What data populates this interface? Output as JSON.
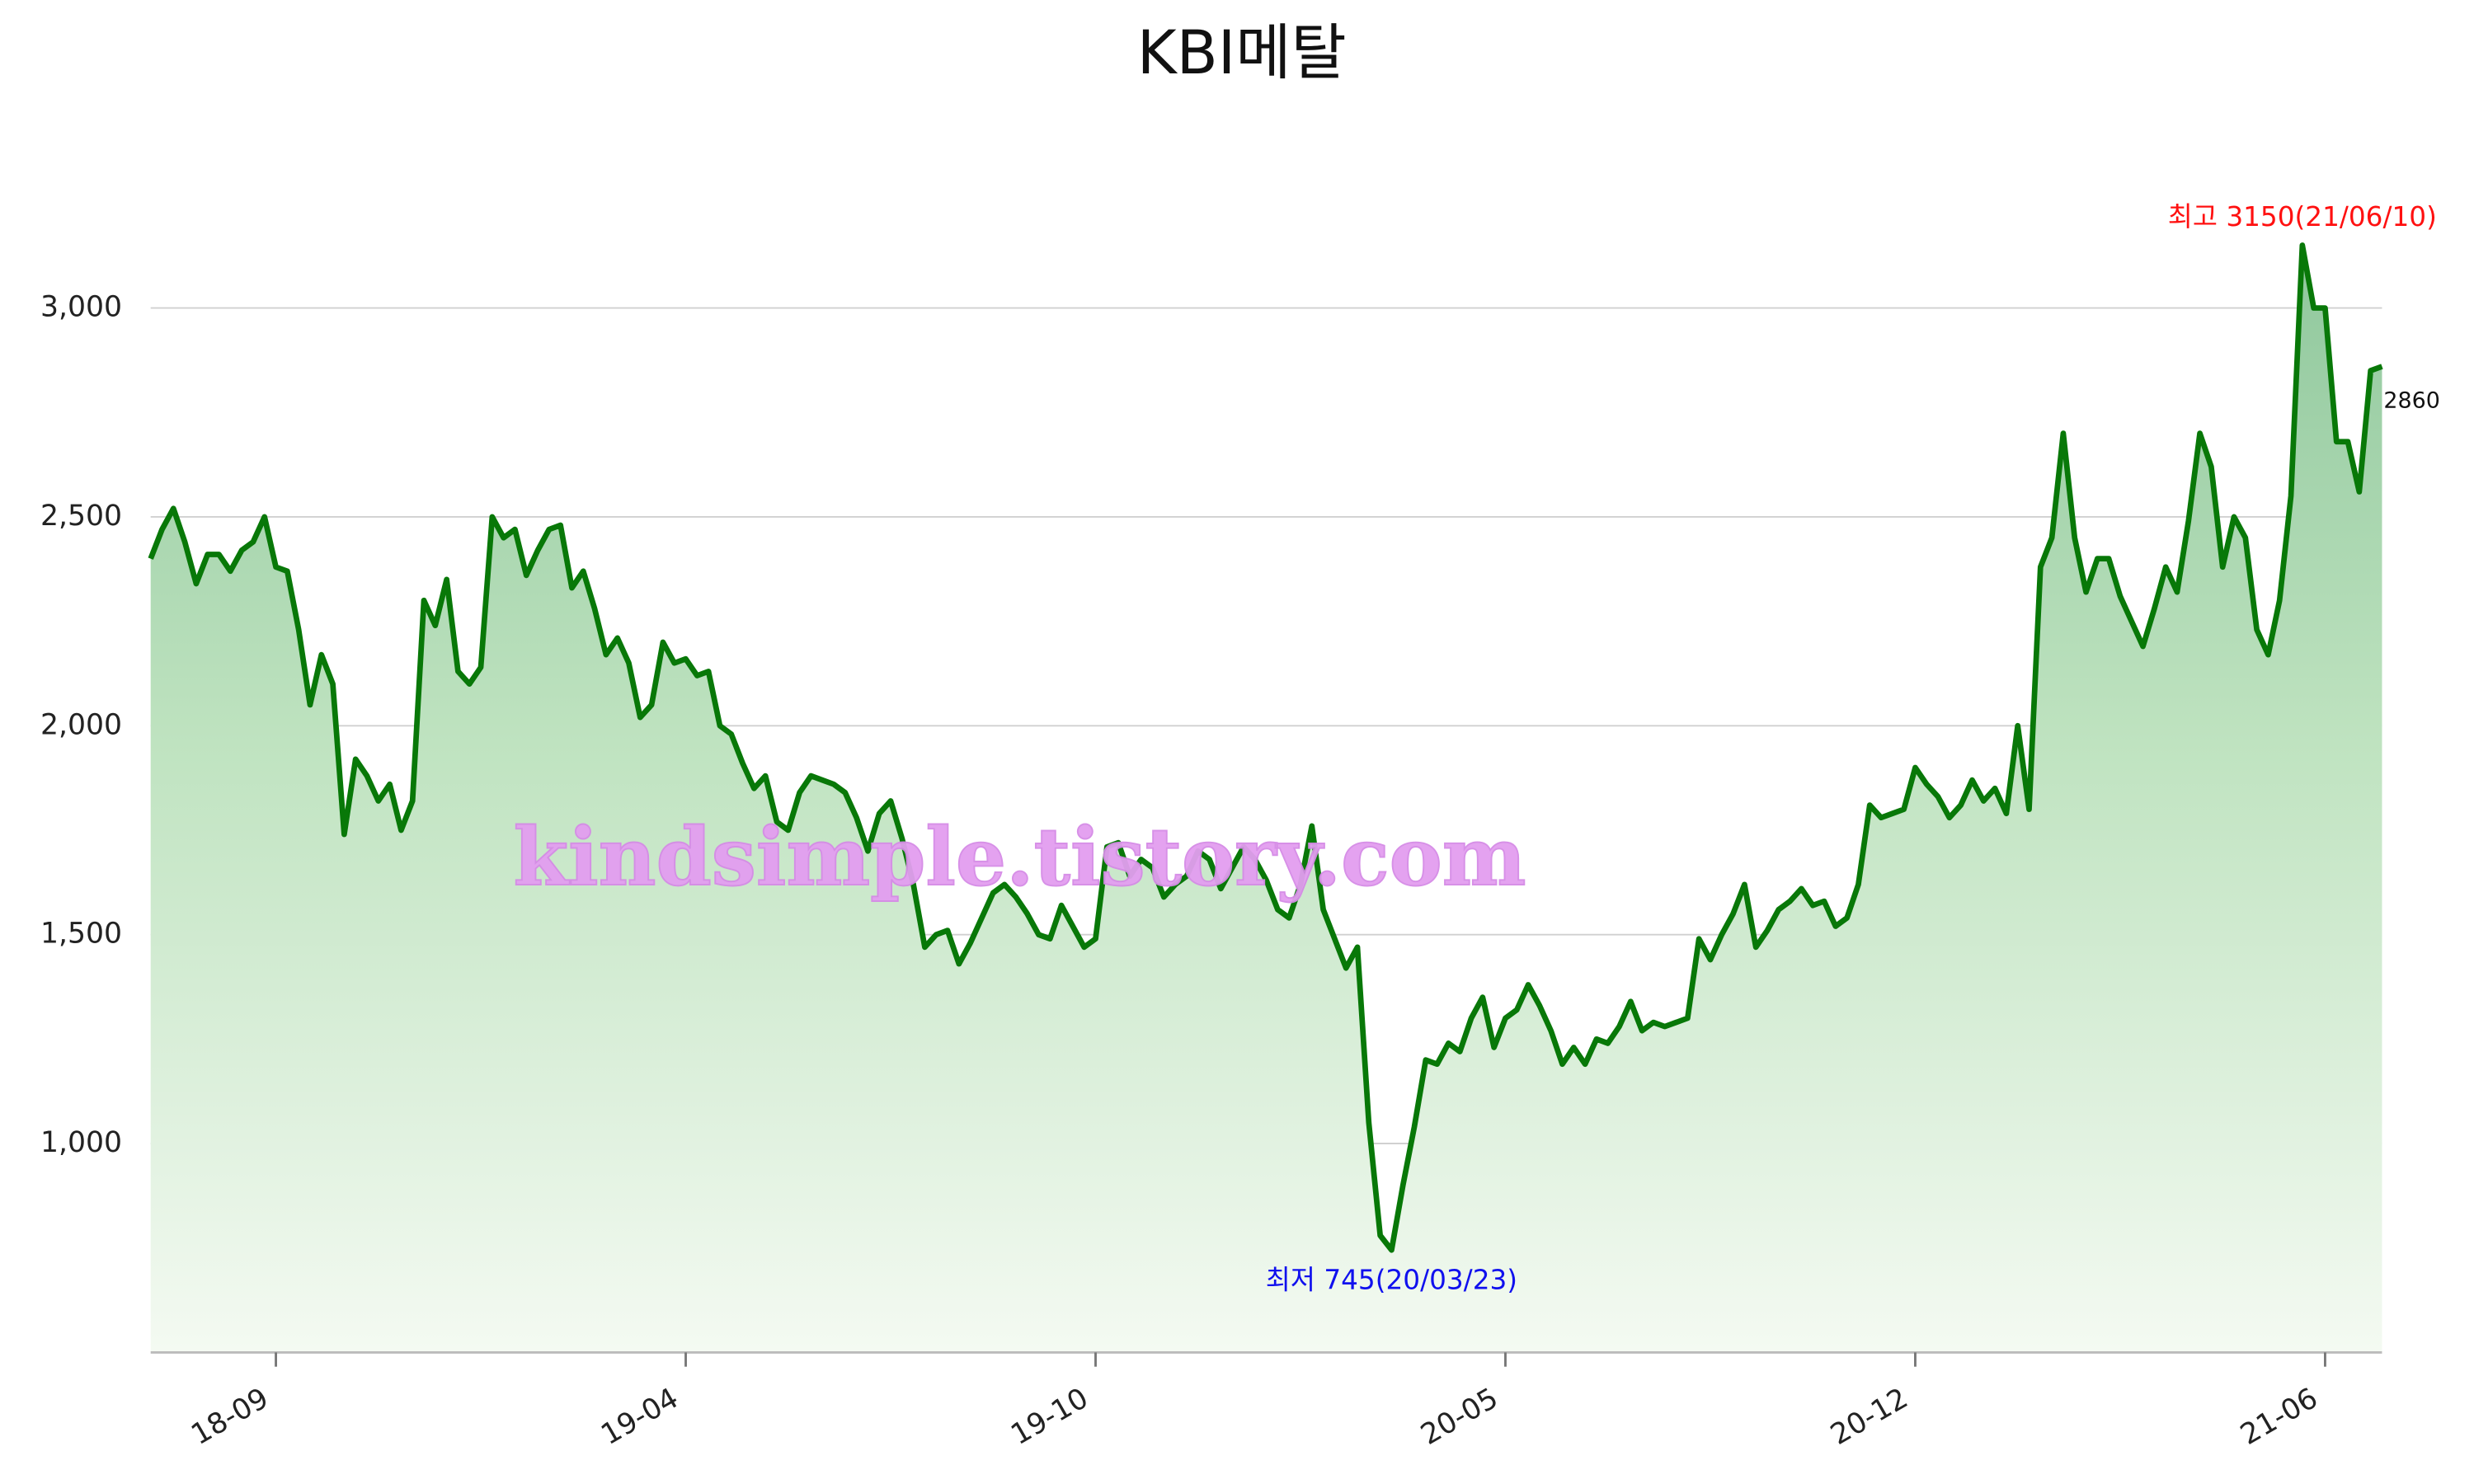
{
  "chart_data": {
    "type": "area",
    "title": "KBI메탈",
    "categories": [
      null,
      null,
      null,
      null,
      null,
      null,
      null,
      null,
      null,
      null,
      null,
      "18-09",
      null,
      null,
      null,
      null,
      null,
      null,
      null,
      null,
      null,
      null,
      null,
      null,
      null,
      null,
      null,
      null,
      null,
      null,
      null,
      null,
      null,
      null,
      null,
      null,
      null,
      null,
      null,
      null,
      null,
      null,
      null,
      null,
      null,
      null,
      null,
      "19-04",
      null,
      null,
      null,
      null,
      null,
      null,
      null,
      null,
      null,
      null,
      null,
      null,
      null,
      null,
      null,
      null,
      null,
      null,
      null,
      null,
      null,
      null,
      null,
      null,
      null,
      null,
      null,
      null,
      null,
      null,
      null,
      null,
      null,
      null,
      null,
      "19-10",
      null,
      null,
      null,
      null,
      null,
      null,
      null,
      null,
      null,
      null,
      null,
      null,
      null,
      null,
      null,
      null,
      null,
      null,
      null,
      null,
      null,
      null,
      null,
      null,
      null,
      null,
      null,
      null,
      null,
      null,
      null,
      null,
      null,
      null,
      null,
      "20-05",
      null,
      null,
      null,
      null,
      null,
      null,
      null,
      null,
      null,
      null,
      null,
      null,
      null,
      null,
      null,
      null,
      null,
      null,
      null,
      null,
      null,
      null,
      null,
      null,
      null,
      null,
      null,
      null,
      null,
      null,
      null,
      null,
      null,
      null,
      null,
      "20-12",
      null,
      null,
      null,
      null,
      null,
      null,
      null,
      null,
      null,
      null,
      null,
      null,
      null,
      null,
      null,
      null,
      null,
      null,
      null,
      null,
      null,
      null,
      null,
      null,
      null,
      null,
      null,
      null,
      null,
      null,
      null,
      null,
      null,
      null,
      null,
      "21-06",
      null,
      null,
      null,
      null,
      null
    ],
    "values": [
      2400,
      2470,
      2520,
      2440,
      2340,
      2410,
      2410,
      2370,
      2420,
      2440,
      2500,
      2380,
      2370,
      2230,
      2050,
      2170,
      2100,
      1740,
      1920,
      1880,
      1820,
      1860,
      1750,
      1820,
      2300,
      2240,
      2350,
      2130,
      2100,
      2140,
      2500,
      2450,
      2470,
      2360,
      2420,
      2470,
      2480,
      2330,
      2370,
      2280,
      2170,
      2210,
      2150,
      2020,
      2050,
      2200,
      2150,
      2160,
      2120,
      2130,
      2000,
      1980,
      1910,
      1850,
      1880,
      1770,
      1750,
      1840,
      1880,
      1870,
      1860,
      1840,
      1780,
      1700,
      1790,
      1820,
      1730,
      1620,
      1470,
      1500,
      1510,
      1430,
      1480,
      1540,
      1600,
      1620,
      1590,
      1550,
      1500,
      1490,
      1570,
      1520,
      1470,
      1490,
      1710,
      1720,
      1640,
      1680,
      1660,
      1590,
      1620,
      1640,
      1700,
      1680,
      1610,
      1660,
      1710,
      1680,
      1630,
      1560,
      1540,
      1620,
      1760,
      1560,
      1490,
      1420,
      1470,
      1050,
      780,
      745,
      900,
      1040,
      1200,
      1190,
      1240,
      1220,
      1300,
      1350,
      1230,
      1300,
      1320,
      1380,
      1330,
      1270,
      1190,
      1230,
      1190,
      1250,
      1240,
      1280,
      1340,
      1270,
      1290,
      1280,
      1290,
      1300,
      1490,
      1440,
      1500,
      1550,
      1620,
      1470,
      1510,
      1560,
      1580,
      1610,
      1570,
      1580,
      1520,
      1540,
      1620,
      1810,
      1780,
      1790,
      1800,
      1900,
      1860,
      1830,
      1780,
      1810,
      1870,
      1820,
      1850,
      1790,
      2000,
      1800,
      2380,
      2450,
      2700,
      2450,
      2320,
      2400,
      2400,
      2310,
      2250,
      2190,
      2280,
      2380,
      2320,
      2490,
      2700,
      2620,
      2380,
      2500,
      2450,
      2230,
      2170,
      2300,
      2550,
      3150,
      3000,
      3000,
      2680,
      2680,
      2560,
      2850,
      2860
    ],
    "color": "#087808",
    "ylim": [
      500,
      3200
    ],
    "yticks": [
      {
        "value": 1000,
        "label": "1,000"
      },
      {
        "value": 1500,
        "label": "1,500"
      },
      {
        "value": 2000,
        "label": "2,000"
      },
      {
        "value": 2500,
        "label": "2,500"
      },
      {
        "value": 3000,
        "label": "3,000"
      }
    ],
    "grid": true,
    "annotations": {
      "high": "최고 3150(21/06/10)",
      "low": "최저 745(20/03/23)"
    },
    "watermark": "kindsimple.tistory.com"
  }
}
